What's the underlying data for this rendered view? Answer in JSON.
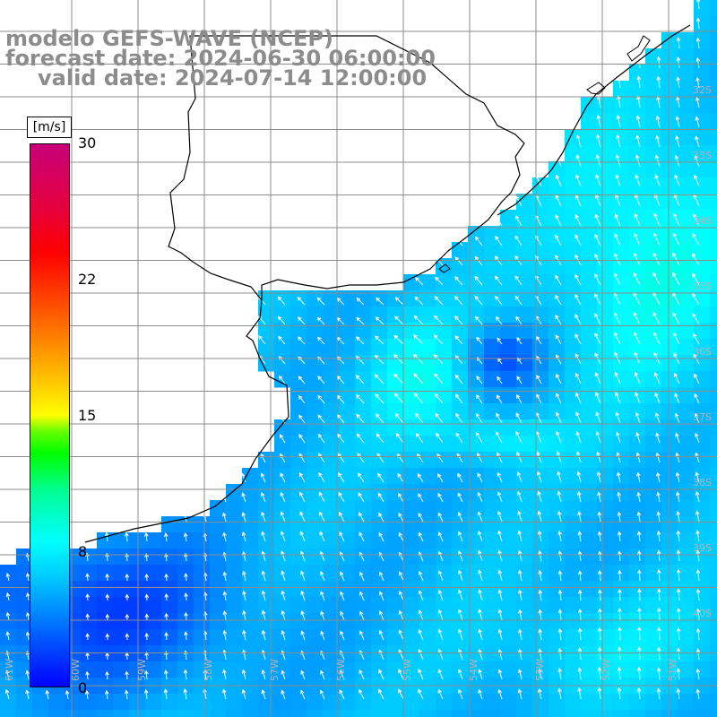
{
  "header": {
    "model_line": "modelo GEFS-WAVE (NCEP)",
    "forecast_line": "forecast date: 2024-06-30 06:00:00",
    "valid_line": "valid date: 2024-07-14 12:00:00"
  },
  "colorbar": {
    "unit": "[m/s]",
    "ticks": [
      "30",
      "22",
      "15",
      "8",
      "0"
    ],
    "range": [
      0,
      30
    ],
    "colors": [
      "#0000ff",
      "#00c8ff",
      "#00ffff",
      "#00ff00",
      "#ffff00",
      "#ff8c00",
      "#ff0000",
      "#c8007a"
    ]
  },
  "map": {
    "lat_labels": [
      "32S",
      "33S",
      "34S",
      "35S",
      "36S",
      "37S",
      "38S",
      "39S",
      "40S"
    ],
    "lon_labels": [
      "61W",
      "60W",
      "59W",
      "58W",
      "57W",
      "56W",
      "55W",
      "54W",
      "53W",
      "52W",
      "51W"
    ],
    "colors": {
      "land": "#ffffff",
      "coastline": "#000000",
      "grid": "#8c8c8c",
      "arrows": "#ffffff",
      "title_text": "#8c8c8c"
    },
    "field": "wind speed with direction arrows"
  }
}
